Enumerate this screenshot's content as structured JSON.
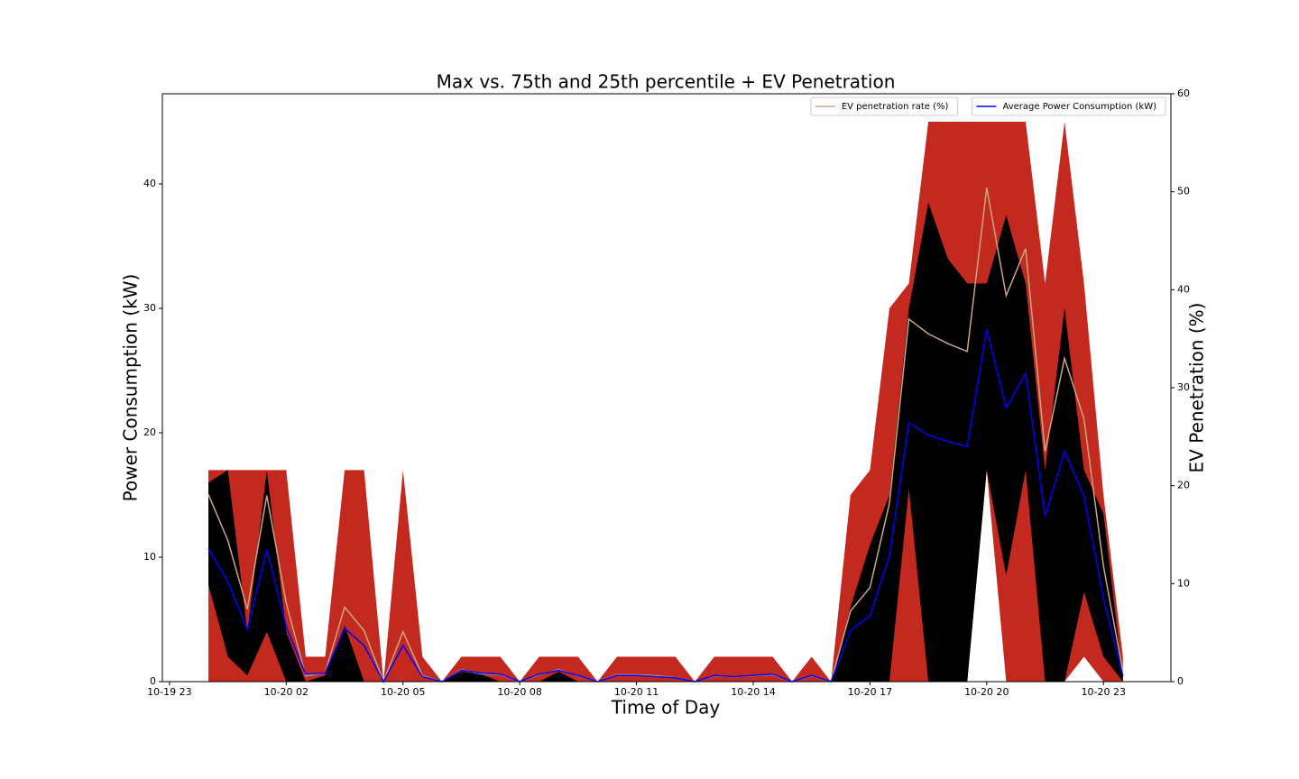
{
  "chart_data": {
    "type": "area",
    "title": "Max vs. 75th and 25th percentile + EV Penetration",
    "x_label": "Time of Day",
    "y_label": "Power Consumption (kW)",
    "y2_label": "EV Penetration (%)",
    "x": [
      "10-20 00:00",
      "10-20 00:30",
      "10-20 01:00",
      "10-20 01:30",
      "10-20 02:00",
      "10-20 02:30",
      "10-20 03:00",
      "10-20 03:30",
      "10-20 04:00",
      "10-20 04:30",
      "10-20 05:00",
      "10-20 05:30",
      "10-20 06:00",
      "10-20 06:30",
      "10-20 07:00",
      "10-20 07:30",
      "10-20 08:00",
      "10-20 08:30",
      "10-20 09:00",
      "10-20 09:30",
      "10-20 10:00",
      "10-20 10:30",
      "10-20 11:00",
      "10-20 11:30",
      "10-20 12:00",
      "10-20 12:30",
      "10-20 13:00",
      "10-20 13:30",
      "10-20 14:00",
      "10-20 14:30",
      "10-20 15:00",
      "10-20 15:30",
      "10-20 16:00",
      "10-20 16:30",
      "10-20 17:00",
      "10-20 17:30",
      "10-20 18:00",
      "10-20 18:30",
      "10-20 19:00",
      "10-20 19:30",
      "10-20 20:00",
      "10-20 20:30",
      "10-20 21:00",
      "10-20 21:30",
      "10-20 22:00",
      "10-20 22:30",
      "10-20 23:00",
      "10-20 23:30"
    ],
    "xlim": [
      "10-19 22:49",
      "10-21 00:44"
    ],
    "xticks": [
      {
        "value": "10-19 23:00",
        "label": "10-19 23"
      },
      {
        "value": "10-20 02:00",
        "label": "10-20 02"
      },
      {
        "value": "10-20 05:00",
        "label": "10-20 05"
      },
      {
        "value": "10-20 08:00",
        "label": "10-20 08"
      },
      {
        "value": "10-20 11:00",
        "label": "10-20 11"
      },
      {
        "value": "10-20 14:00",
        "label": "10-20 14"
      },
      {
        "value": "10-20 17:00",
        "label": "10-20 17"
      },
      {
        "value": "10-20 20:00",
        "label": "10-20 20"
      },
      {
        "value": "10-20 23:00",
        "label": "10-20 23"
      }
    ],
    "ylim": [
      0,
      47.25
    ],
    "yticks": [
      0,
      10,
      20,
      30,
      40
    ],
    "y2lim": [
      0,
      60
    ],
    "y2ticks": [
      0,
      10,
      20,
      30,
      40,
      50,
      60
    ],
    "bands": [
      {
        "color": "#c4291f",
        "upper": [
          17,
          17,
          17,
          17,
          17,
          2,
          2,
          17,
          17,
          0,
          17,
          2,
          0,
          2,
          2,
          2,
          0,
          2,
          2,
          2,
          0,
          2,
          2,
          2,
          2,
          0,
          2,
          2,
          2,
          2,
          0,
          2,
          0,
          15,
          17,
          30,
          32,
          45,
          45,
          45,
          45,
          45,
          45,
          32,
          45,
          32,
          15,
          2
        ],
        "lower": [
          0,
          0,
          0,
          0,
          0,
          0,
          0,
          0,
          0,
          0,
          0,
          0,
          0,
          0,
          0,
          0,
          0,
          0,
          0,
          0,
          0,
          0,
          0,
          0,
          0,
          0,
          0,
          0,
          0,
          0,
          0,
          0,
          0,
          0,
          0,
          0,
          0,
          0,
          0,
          0,
          17,
          0,
          0,
          0,
          0,
          2,
          0,
          0
        ]
      },
      {
        "color": "#000000",
        "upper": [
          16,
          17,
          4,
          17,
          4,
          0,
          0.5,
          4.5,
          0,
          0,
          0,
          0,
          0,
          0.8,
          0.6,
          0,
          0,
          0,
          0.8,
          0,
          0,
          0,
          0,
          0,
          0,
          0,
          0,
          0,
          0,
          0,
          0,
          0,
          0,
          6,
          11,
          15,
          30,
          38.5,
          34,
          32,
          32,
          37.5,
          32,
          17,
          30,
          17,
          13.5,
          0.3
        ],
        "lower": [
          7.8,
          2,
          0.5,
          4,
          0,
          0,
          0,
          0,
          0,
          0,
          0,
          0,
          0,
          0,
          0,
          0,
          0,
          0,
          0,
          0,
          0,
          0,
          0,
          0,
          0,
          0,
          0,
          0,
          0,
          0,
          0,
          0,
          0,
          0,
          0,
          0,
          15.5,
          0,
          0,
          0,
          17,
          8.5,
          17,
          0,
          0,
          7.2,
          2,
          0
        ]
      }
    ],
    "series": [
      {
        "name": "EV penetration rate (%)",
        "color": "#c8a882",
        "axis": "y2",
        "values": [
          19.1,
          14.4,
          7.4,
          19,
          8,
          0.6,
          0.9,
          7.6,
          5.2,
          0,
          5.1,
          0.6,
          0,
          1.2,
          0.8,
          0.7,
          0,
          0.7,
          1.2,
          0.6,
          0,
          0.7,
          0.7,
          0.6,
          0.4,
          0,
          0.6,
          0.5,
          0.6,
          0.7,
          0,
          0.6,
          0,
          7.2,
          9.6,
          18.2,
          37,
          35.5,
          34.5,
          33.7,
          50.4,
          39.4,
          44.2,
          23.5,
          33,
          26.8,
          11.8,
          1
        ]
      },
      {
        "name": "Average Power Consumption (kW)",
        "color": "#0000ff",
        "values": [
          10.7,
          8,
          4.2,
          10.6,
          4.4,
          0.6,
          0.7,
          4.3,
          2.9,
          0,
          2.9,
          0.4,
          0,
          0.9,
          0.7,
          0.6,
          0,
          0.6,
          0.9,
          0.5,
          0,
          0.5,
          0.5,
          0.4,
          0.3,
          0,
          0.5,
          0.4,
          0.5,
          0.6,
          0,
          0.5,
          0,
          4.1,
          5.3,
          10.1,
          20.8,
          19.8,
          19.3,
          18.9,
          28.3,
          22,
          24.8,
          13.3,
          18.5,
          14.9,
          6.7,
          0.4
        ]
      }
    ],
    "legend": "upper right"
  }
}
